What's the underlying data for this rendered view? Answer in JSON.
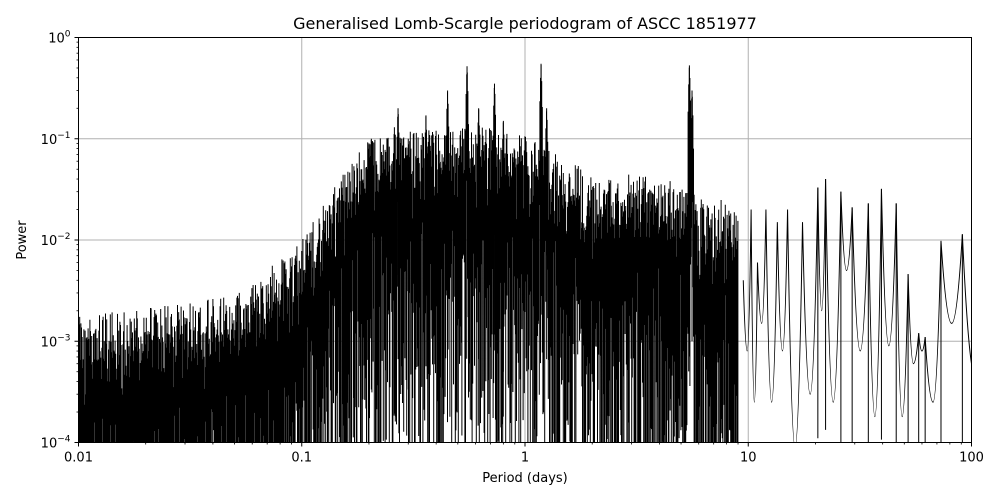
{
  "chart_data": {
    "type": "line",
    "title": "Generalised Lomb-Scargle periodogram of ASCC 1851977",
    "xlabel": "Period (days)",
    "ylabel": "Power",
    "xscale": "log",
    "yscale": "log",
    "xlim": [
      0.01,
      100
    ],
    "ylim": [
      0.0001,
      1
    ],
    "grid": true,
    "x_ticks": [
      {
        "value": 0.01,
        "label": "0.01"
      },
      {
        "value": 0.1,
        "label": "0.1"
      },
      {
        "value": 1,
        "label": "1"
      },
      {
        "value": 10,
        "label": "10"
      },
      {
        "value": 100,
        "label": "100"
      }
    ],
    "y_ticks": [
      {
        "value": 0.0001,
        "base": "10",
        "exp": "−4"
      },
      {
        "value": 0.001,
        "base": "10",
        "exp": "−3"
      },
      {
        "value": 0.01,
        "base": "10",
        "exp": "−2"
      },
      {
        "value": 0.1,
        "base": "10",
        "exp": "−1"
      },
      {
        "value": 1,
        "base": "10",
        "exp": "0"
      }
    ],
    "series": [
      {
        "color": "#000000",
        "peaks": [
          {
            "period": 0.2,
            "power": 0.09
          },
          {
            "period": 0.205,
            "power": 0.1
          },
          {
            "period": 0.26,
            "power": 0.13
          },
          {
            "period": 0.27,
            "power": 0.2
          },
          {
            "period": 0.3,
            "power": 0.1
          },
          {
            "period": 0.36,
            "power": 0.17
          },
          {
            "period": 0.45,
            "power": 0.3
          },
          {
            "period": 0.55,
            "power": 0.52
          },
          {
            "period": 0.62,
            "power": 0.2
          },
          {
            "period": 0.73,
            "power": 0.35
          },
          {
            "period": 0.8,
            "power": 0.15
          },
          {
            "period": 1.18,
            "power": 0.55
          },
          {
            "period": 1.25,
            "power": 0.2
          },
          {
            "period": 5.45,
            "power": 0.53
          },
          {
            "period": 5.6,
            "power": 0.3
          },
          {
            "period": 20.5,
            "power": 0.033
          },
          {
            "period": 22.2,
            "power": 0.04
          },
          {
            "period": 26,
            "power": 0.03
          },
          {
            "period": 29.2,
            "power": 0.021
          },
          {
            "period": 34.5,
            "power": 0.023
          },
          {
            "period": 39.5,
            "power": 0.032
          },
          {
            "period": 46,
            "power": 0.023
          },
          {
            "period": 52,
            "power": 0.0046
          },
          {
            "period": 58,
            "power": 0.0012
          },
          {
            "period": 62,
            "power": 0.0011
          },
          {
            "period": 73,
            "power": 0.0098
          },
          {
            "period": 91,
            "power": 0.0114
          }
        ]
      }
    ]
  }
}
